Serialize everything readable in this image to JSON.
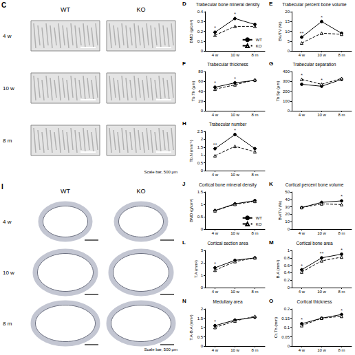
{
  "images": [
    {
      "panel_label": "C",
      "columns": [
        "WT",
        "KO"
      ],
      "rows": [
        "4 w",
        "10 w",
        "8 m"
      ],
      "scale_bar": "Scale bar, 500 μm"
    },
    {
      "panel_label": "I",
      "columns": [
        "WT",
        "KO"
      ],
      "rows": [
        "4 w",
        "10 w",
        "8 m"
      ],
      "scale_bar": "Scale bar, 500 μm"
    }
  ],
  "chart_data": [
    {
      "type": "line",
      "panel_label": "D",
      "title": "Trabecular bone mineral density",
      "ylabel": "BMD (g/cm³)",
      "categories": [
        "4 w",
        "10 w",
        "8 m"
      ],
      "ylim": [
        0,
        0.4
      ],
      "yticks": [
        0,
        0.1,
        0.2,
        0.3,
        0.4
      ],
      "grid": false,
      "legend": "lower right",
      "annotations": [
        "*",
        "*",
        null
      ],
      "series": [
        {
          "name": "WT",
          "color": "#000000",
          "marker": "circle",
          "line_style": "solid",
          "values": [
            0.19,
            0.33,
            0.27
          ]
        },
        {
          "name": "KO",
          "color": "#000000",
          "marker": "triangle_open",
          "line_style": "dashed",
          "values": [
            0.16,
            0.25,
            0.25
          ]
        }
      ]
    },
    {
      "type": "line",
      "panel_label": "E",
      "title": "Trabecular percent bone volume",
      "ylabel": "BV/TV (%)",
      "categories": [
        "4 w",
        "10 w",
        "8 m"
      ],
      "ylim": [
        0,
        20
      ],
      "yticks": [
        0,
        5,
        10,
        15,
        20
      ],
      "grid": false,
      "annotations": [
        "**",
        "*",
        null
      ],
      "series": [
        {
          "name": "WT",
          "color": "#000000",
          "marker": "circle",
          "line_style": "solid",
          "values": [
            7,
            15,
            9
          ]
        },
        {
          "name": "KO",
          "color": "#000000",
          "marker": "triangle_open",
          "line_style": "dashed",
          "values": [
            4,
            9,
            8.5
          ]
        }
      ]
    },
    {
      "type": "line",
      "panel_label": "F",
      "title": "Trabecular thickness",
      "ylabel": "Tb.Th (μm)",
      "categories": [
        "4 w",
        "10 w",
        "8 m"
      ],
      "ylim": [
        0,
        80
      ],
      "yticks": [
        0,
        20,
        40,
        60,
        80
      ],
      "grid": false,
      "annotations": [
        "*",
        "*",
        null
      ],
      "series": [
        {
          "name": "WT",
          "color": "#000000",
          "marker": "circle",
          "line_style": "solid",
          "values": [
            48,
            57,
            62
          ]
        },
        {
          "name": "KO",
          "color": "#000000",
          "marker": "triangle_open",
          "line_style": "dashed",
          "values": [
            44,
            53,
            63
          ]
        }
      ]
    },
    {
      "type": "line",
      "panel_label": "G",
      "title": "Trabecular separation",
      "ylabel": "Tb.Sp (μm)",
      "categories": [
        "4 w",
        "10 w",
        "8 m"
      ],
      "ylim": [
        0,
        400
      ],
      "yticks": [
        0,
        100,
        200,
        300,
        400
      ],
      "grid": false,
      "annotations": [
        "*",
        "*",
        null
      ],
      "series": [
        {
          "name": "WT",
          "color": "#000000",
          "marker": "circle",
          "line_style": "solid",
          "values": [
            270,
            250,
            320
          ]
        },
        {
          "name": "KO",
          "color": "#000000",
          "marker": "triangle_open",
          "line_style": "dashed",
          "values": [
            320,
            270,
            330
          ]
        }
      ]
    },
    {
      "type": "line",
      "panel_label": "H",
      "title": "Trabecular number",
      "ylabel": "Tb.N (mm⁻¹)",
      "categories": [
        "4 w",
        "10 w",
        "8 m"
      ],
      "ylim": [
        0,
        2.5
      ],
      "yticks": [
        0,
        0.5,
        1,
        1.5,
        2,
        2.5
      ],
      "grid": false,
      "annotations": [
        "**",
        "*",
        null
      ],
      "series": [
        {
          "name": "WT",
          "color": "#000000",
          "marker": "circle",
          "line_style": "solid",
          "values": [
            1.4,
            2.3,
            1.4
          ]
        },
        {
          "name": "KO",
          "color": "#000000",
          "marker": "triangle_open",
          "line_style": "dashed",
          "values": [
            0.95,
            1.55,
            1.2
          ]
        }
      ]
    },
    {
      "type": "line",
      "panel_label": "J",
      "title": "Cortical bone mineral density",
      "ylabel": "BMD (g/cm³)",
      "categories": [
        "4 w",
        "10 w",
        "8 m"
      ],
      "ylim": [
        0,
        1.5
      ],
      "yticks": [
        0,
        0.5,
        1,
        1.5
      ],
      "grid": false,
      "legend": "lower right",
      "annotations": [
        null,
        null,
        null
      ],
      "series": [
        {
          "name": "WT",
          "color": "#000000",
          "marker": "circle",
          "line_style": "solid",
          "values": [
            0.75,
            1.02,
            1.15
          ]
        },
        {
          "name": "KO",
          "color": "#000000",
          "marker": "triangle_open",
          "line_style": "dashed",
          "values": [
            0.74,
            1.0,
            1.12
          ]
        }
      ]
    },
    {
      "type": "line",
      "panel_label": "K",
      "title": "Cortical percent bone volume",
      "ylabel": "BV/TV (%)",
      "categories": [
        "4 w",
        "10 w",
        "8 m"
      ],
      "ylim": [
        0,
        50
      ],
      "yticks": [
        0,
        10,
        20,
        30,
        40,
        50
      ],
      "grid": false,
      "annotations": [
        null,
        null,
        "*"
      ],
      "series": [
        {
          "name": "WT",
          "color": "#000000",
          "marker": "circle",
          "line_style": "solid",
          "values": [
            29,
            36,
            38
          ]
        },
        {
          "name": "KO",
          "color": "#000000",
          "marker": "triangle_open",
          "line_style": "dashed",
          "values": [
            29,
            34,
            33
          ]
        }
      ]
    },
    {
      "type": "line",
      "panel_label": "L",
      "title": "Cortical section area",
      "ylabel": "T.A (mm²)",
      "categories": [
        "4 w",
        "10 w",
        "8 m"
      ],
      "ylim": [
        0,
        3
      ],
      "yticks": [
        0,
        1,
        2,
        3
      ],
      "grid": false,
      "annotations": [
        "*",
        null,
        null
      ],
      "series": [
        {
          "name": "WT",
          "color": "#000000",
          "marker": "circle",
          "line_style": "solid",
          "values": [
            1.6,
            2.2,
            2.4
          ]
        },
        {
          "name": "KO",
          "color": "#000000",
          "marker": "triangle_open",
          "line_style": "dashed",
          "values": [
            1.4,
            2.1,
            2.4
          ]
        }
      ]
    },
    {
      "type": "line",
      "panel_label": "M",
      "title": "Cortical bone area",
      "ylabel": "B.A (mm²)",
      "categories": [
        "4 w",
        "10 w",
        "8 m"
      ],
      "ylim": [
        0,
        1
      ],
      "yticks": [
        0,
        0.2,
        0.4,
        0.6,
        0.8,
        1
      ],
      "grid": false,
      "annotations": [
        "*",
        "**",
        "*"
      ],
      "series": [
        {
          "name": "WT",
          "color": "#000000",
          "marker": "circle",
          "line_style": "solid",
          "values": [
            0.48,
            0.8,
            0.9
          ]
        },
        {
          "name": "KO",
          "color": "#000000",
          "marker": "triangle_open",
          "line_style": "dashed",
          "values": [
            0.42,
            0.72,
            0.82
          ]
        }
      ]
    },
    {
      "type": "line",
      "panel_label": "N",
      "title": "Medullary area",
      "ylabel": "T.A-B.A (mm²)",
      "categories": [
        "4 w",
        "10 w",
        "8 m"
      ],
      "ylim": [
        0,
        2
      ],
      "yticks": [
        0,
        0.5,
        1,
        1.5,
        2
      ],
      "grid": false,
      "annotations": [
        "*",
        null,
        null
      ],
      "series": [
        {
          "name": "WT",
          "color": "#000000",
          "marker": "circle",
          "line_style": "solid",
          "values": [
            1.1,
            1.4,
            1.55
          ]
        },
        {
          "name": "KO",
          "color": "#000000",
          "marker": "triangle_open",
          "line_style": "dashed",
          "values": [
            1.0,
            1.35,
            1.6
          ]
        }
      ]
    },
    {
      "type": "line",
      "panel_label": "O",
      "title": "Cortical thickness",
      "ylabel": "Ct.Th (mm)",
      "categories": [
        "4 w",
        "10 w",
        "8 m"
      ],
      "ylim": [
        0,
        0.2
      ],
      "yticks": [
        0,
        0.05,
        0.1,
        0.15,
        0.2
      ],
      "grid": false,
      "annotations": [
        "*",
        null,
        "*"
      ],
      "series": [
        {
          "name": "WT",
          "color": "#000000",
          "marker": "circle",
          "line_style": "solid",
          "values": [
            0.12,
            0.15,
            0.17
          ]
        },
        {
          "name": "KO",
          "color": "#000000",
          "marker": "triangle_open",
          "line_style": "dashed",
          "values": [
            0.11,
            0.15,
            0.16
          ]
        }
      ]
    }
  ]
}
